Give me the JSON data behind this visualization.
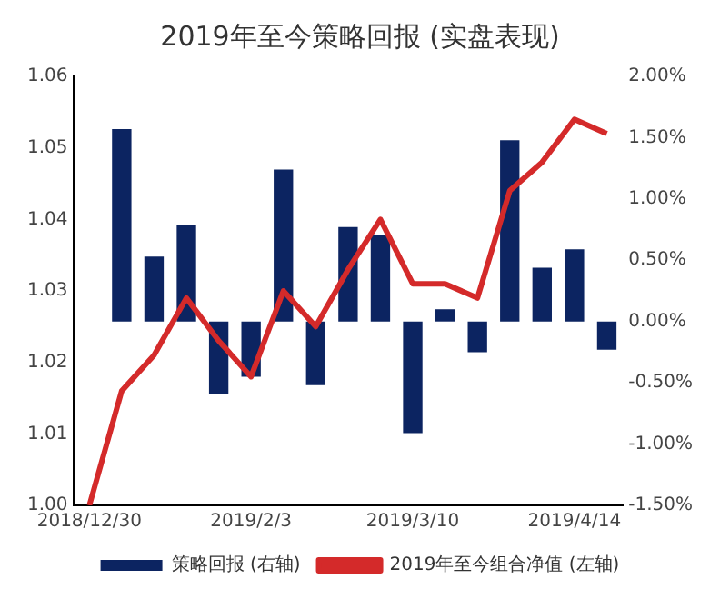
{
  "chart_data": {
    "type": "bar",
    "title": "2019年至今策略回报 (实盘表现)",
    "categories": [
      "2018/12/30",
      null,
      null,
      null,
      null,
      "2019/2/3",
      null,
      null,
      null,
      null,
      "2019/3/10",
      null,
      null,
      null,
      null,
      "2019/4/14",
      null
    ],
    "series": [
      {
        "name": "策略回报 (右轴)",
        "axis": "y2",
        "color": "#0c2461",
        "values": [
          null,
          1.57,
          0.53,
          0.79,
          -0.59,
          -0.45,
          1.24,
          -0.52,
          0.77,
          0.71,
          -0.91,
          0.1,
          -0.25,
          1.48,
          0.44,
          0.59,
          -0.23
        ]
      },
      {
        "name": "2019年至今组合净值 (左轴)",
        "type": "line",
        "axis": "y",
        "color": "#d42a2a",
        "values": [
          1.0,
          1.016,
          1.021,
          1.029,
          1.023,
          1.018,
          1.03,
          1.025,
          1.033,
          1.04,
          1.031,
          1.031,
          1.029,
          1.044,
          1.048,
          1.054,
          1.052
        ]
      }
    ],
    "ylim": [
      1.0,
      1.06
    ],
    "yticks": [
      {
        "value": 1.0,
        "label": "1.00"
      },
      {
        "value": 1.01,
        "label": "1.01"
      },
      {
        "value": 1.02,
        "label": "1.02"
      },
      {
        "value": 1.03,
        "label": "1.03"
      },
      {
        "value": 1.04,
        "label": "1.04"
      },
      {
        "value": 1.05,
        "label": "1.05"
      },
      {
        "value": 1.06,
        "label": "1.06"
      }
    ],
    "y2lim": [
      -1.5,
      2.0
    ],
    "y2ticks": [
      {
        "value": -1.5,
        "label": "-1.50%"
      },
      {
        "value": -1.0,
        "label": "-1.00%"
      },
      {
        "value": -0.5,
        "label": "-0.50%"
      },
      {
        "value": 0,
        "label": "0.00%"
      },
      {
        "value": 0.5,
        "label": "0.50%"
      },
      {
        "value": 1.0,
        "label": "1.00%"
      },
      {
        "value": 1.5,
        "label": "1.50%"
      },
      {
        "value": 2.0,
        "label": "2.00%"
      }
    ],
    "grid": false,
    "legend": "bottom",
    "marker": "none",
    "line_style": "solid"
  }
}
